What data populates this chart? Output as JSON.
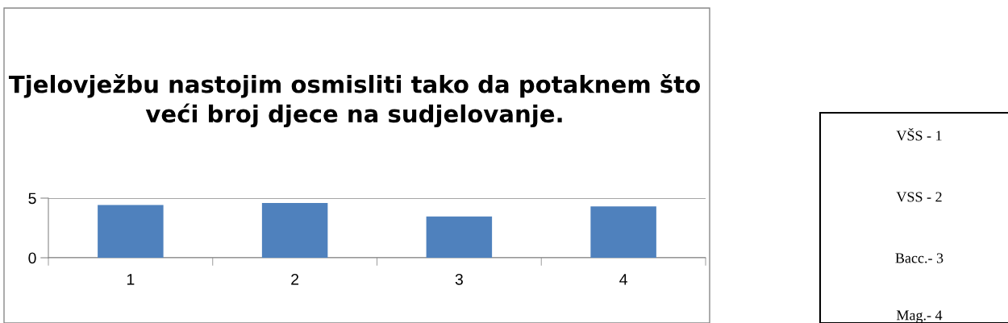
{
  "chart_data": {
    "type": "bar",
    "title": "Tjelovježbu nastojim osmisliti tako da potaknem što veći broj djece na sudjelovanje.",
    "categories": [
      "1",
      "2",
      "3",
      "4"
    ],
    "values": [
      4.43,
      4.59,
      3.46,
      4.31
    ],
    "color": "#4f81bd",
    "ylim": [
      0,
      5
    ],
    "yticks": [
      0,
      5
    ],
    "grid": "y",
    "annotations": [
      "VŠS - 1",
      "VSS - 2",
      "Bacc.- 3",
      "Mag.- 4"
    ]
  }
}
